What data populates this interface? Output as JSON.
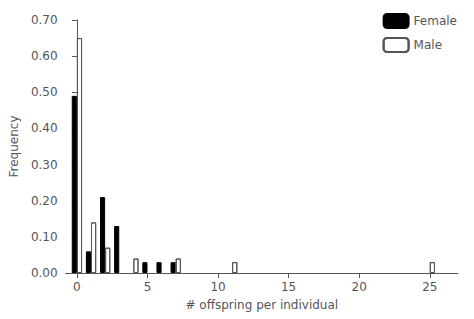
{
  "chart_data": {
    "type": "bar",
    "xlabel": "# offspring per individual",
    "ylabel": "Frequency",
    "series": [
      {
        "name": "Female",
        "color": "#000000",
        "x": [
          0,
          1,
          2,
          3,
          5,
          6,
          7
        ],
        "values": [
          0.49,
          0.06,
          0.21,
          0.13,
          0.03,
          0.03,
          0.03
        ]
      },
      {
        "name": "Male",
        "color": "#ffffff",
        "x": [
          0,
          1,
          2,
          4,
          7,
          11,
          25
        ],
        "values": [
          0.65,
          0.14,
          0.07,
          0.04,
          0.04,
          0.03,
          0.03
        ]
      }
    ],
    "xlim": [
      -0.8,
      27
    ],
    "xticks": [
      0,
      5,
      10,
      15,
      20,
      25
    ],
    "ylim": [
      0.0,
      0.7
    ],
    "yticks": [
      {
        "value": 0.0,
        "label": "0.00"
      },
      {
        "value": 0.1,
        "label": "0.10"
      },
      {
        "value": 0.2,
        "label": "0.20"
      },
      {
        "value": 0.3,
        "label": "0.30"
      },
      {
        "value": 0.4,
        "label": "0.40"
      },
      {
        "value": 0.5,
        "label": "0.50"
      },
      {
        "value": 0.6,
        "label": "0.60"
      },
      {
        "value": 0.7,
        "label": "0.70"
      }
    ],
    "grid": false,
    "legend": "upper right"
  }
}
